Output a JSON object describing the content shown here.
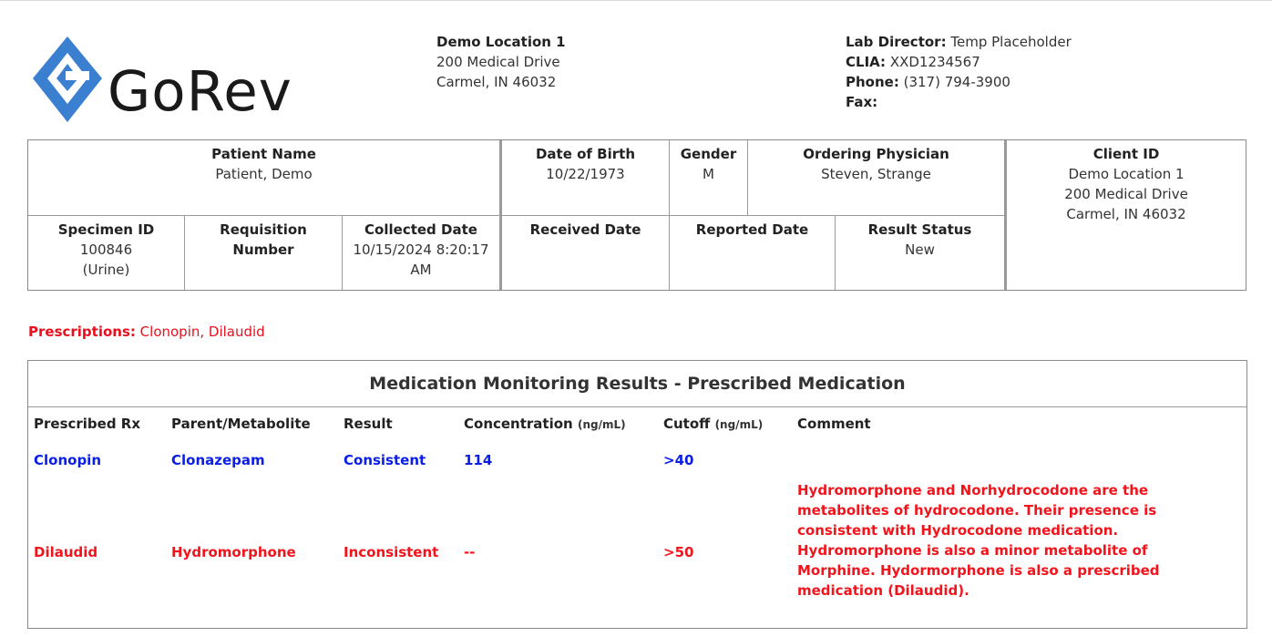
{
  "logo": {
    "text": "GoRev",
    "colors": {
      "diamond": "#3a7fd0",
      "text": "#1a1a1a"
    }
  },
  "location": {
    "name": "Demo Location 1",
    "address1": "200 Medical Drive",
    "address2": "Carmel, IN 46032"
  },
  "lab": {
    "director_label": "Lab Director:",
    "director": "Temp Placeholder",
    "clia_label": "CLIA:",
    "clia": "XXD1234567",
    "phone_label": "Phone:",
    "phone": "(317) 794-3900",
    "fax_label": "Fax:",
    "fax": ""
  },
  "patient": {
    "name_label": "Patient Name",
    "name": "Patient, Demo",
    "dob_label": "Date of Birth",
    "dob": "10/22/1973",
    "gender_label": "Gender",
    "gender": "M",
    "physician_label": "Ordering Physician",
    "physician": "Steven, Strange",
    "client_label": "Client ID",
    "client_line1": "Demo Location 1",
    "client_line2": "200 Medical Drive",
    "client_line3": "Carmel, IN 46032",
    "specimen_label": "Specimen ID",
    "specimen_id": "100846",
    "specimen_type": "(Urine)",
    "req_label_1": "Requisition",
    "req_label_2": "Number",
    "req_number": "",
    "collected_label": "Collected Date",
    "collected_1": "10/15/2024 8:20:17",
    "collected_2": "AM",
    "received_label": "Received Date",
    "received": "",
    "reported_label": "Reported Date",
    "reported": "",
    "status_label": "Result Status",
    "status": "New"
  },
  "prescriptions": {
    "label": "Prescriptions:",
    "value": "Clonopin, Dilaudid"
  },
  "results": {
    "title": "Medication Monitoring Results - Prescribed Medication",
    "columns": {
      "rx": "Prescribed Rx",
      "parent": "Parent/Metabolite",
      "result": "Result",
      "conc": "Concentration",
      "conc_unit": "(ng/mL)",
      "cutoff": "Cutoff",
      "cutoff_unit": "(ng/mL)",
      "comment": "Comment"
    },
    "rows": [
      {
        "rx": "Clonopin",
        "parent": "Clonazepam",
        "result": "Consistent",
        "conc": "114",
        "cutoff": ">40",
        "comment": ""
      },
      {
        "rx": "Dilaudid",
        "parent": "Hydromorphone",
        "result": "Inconsistent",
        "conc": "--",
        "cutoff": ">50",
        "comment": "Hydromorphone and Norhydrocodone are the metabolites of hydrocodone. Their presence is consistent with Hydrocodone medication. Hydromorphone is also a minor metabolite of Morphine. Hydormorphone is also a prescribed medication (Dilaudid)."
      }
    ],
    "colors": {
      "consistent": "#0a1ee6",
      "inconsistent": "#f2141c"
    }
  }
}
